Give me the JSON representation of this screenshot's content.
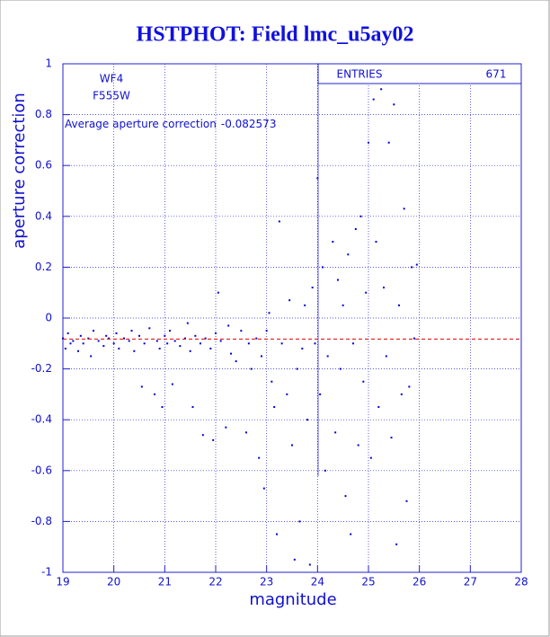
{
  "chart_data": {
    "type": "scatter",
    "title": "HSTPHOT: Field lmc_u5ay02",
    "x_label": "magnitude",
    "y_label": "aperture correction",
    "annotations": [
      "WF4",
      "F555W"
    ],
    "average_label": "Average aperture correction",
    "average": -0.082573,
    "average_color": "#e00000",
    "stats": {
      "label": "ENTRIES",
      "value": 671
    },
    "color": "#0000d0",
    "grid": true,
    "xlim": [
      19,
      28
    ],
    "xticks": [
      19,
      20,
      21,
      22,
      23,
      24,
      25,
      26,
      27,
      28
    ],
    "ylim": [
      -1,
      1
    ],
    "yticks": [
      -1,
      -0.8,
      -0.6,
      -0.4,
      -0.2,
      0,
      0.2,
      0.4,
      0.6,
      0.8,
      1
    ],
    "x": [
      19.0,
      19.05,
      19.1,
      19.15,
      19.2,
      19.3,
      19.35,
      19.4,
      19.5,
      19.55,
      19.6,
      19.7,
      19.8,
      19.85,
      19.9,
      20.0,
      20.05,
      20.1,
      20.2,
      20.3,
      20.35,
      20.4,
      20.5,
      20.55,
      20.6,
      20.7,
      20.8,
      20.85,
      20.9,
      20.95,
      21.0,
      21.05,
      21.1,
      21.15,
      21.2,
      21.3,
      21.4,
      21.45,
      21.5,
      21.55,
      21.6,
      21.7,
      21.75,
      21.8,
      21.9,
      21.95,
      22.0,
      22.05,
      22.1,
      22.2,
      22.25,
      22.3,
      22.4,
      22.5,
      22.6,
      22.65,
      22.7,
      22.8,
      22.85,
      22.9,
      22.95,
      23.0,
      23.05,
      23.1,
      23.15,
      23.2,
      23.25,
      23.3,
      23.4,
      23.45,
      23.5,
      23.55,
      23.6,
      23.65,
      23.7,
      23.75,
      23.8,
      23.85,
      23.9,
      23.95,
      24.0,
      24.05,
      24.1,
      24.15,
      24.2,
      24.3,
      24.35,
      24.4,
      24.45,
      24.5,
      24.55,
      24.6,
      24.65,
      24.7,
      24.75,
      24.8,
      24.85,
      24.9,
      24.95,
      25.0,
      25.05,
      25.1,
      25.15,
      25.2,
      25.25,
      25.3,
      25.35,
      25.4,
      25.45,
      25.5,
      25.55,
      25.6,
      25.65,
      25.7,
      25.75,
      25.8,
      25.85,
      25.9,
      25.95
    ],
    "y": [
      -0.08,
      -0.12,
      -0.06,
      -0.1,
      -0.09,
      -0.13,
      -0.07,
      -0.1,
      -0.08,
      -0.15,
      -0.05,
      -0.09,
      -0.11,
      -0.07,
      -0.08,
      -0.1,
      -0.06,
      -0.12,
      -0.08,
      -0.09,
      -0.05,
      -0.13,
      -0.07,
      -0.27,
      -0.1,
      -0.04,
      -0.3,
      -0.09,
      -0.12,
      -0.35,
      -0.07,
      -0.1,
      -0.05,
      -0.26,
      -0.09,
      -0.11,
      -0.08,
      -0.02,
      -0.13,
      -0.35,
      -0.07,
      -0.1,
      -0.46,
      -0.08,
      -0.12,
      -0.48,
      -0.06,
      0.1,
      -0.09,
      -0.43,
      -0.03,
      -0.14,
      -0.17,
      -0.05,
      -0.45,
      -0.1,
      -0.2,
      -0.08,
      -0.55,
      -0.15,
      -0.67,
      -0.05,
      0.02,
      -0.25,
      -0.35,
      -0.85,
      0.38,
      -0.1,
      -0.3,
      0.07,
      -0.5,
      -0.95,
      -0.2,
      -0.8,
      -0.12,
      0.05,
      -0.4,
      -0.97,
      0.12,
      -0.1,
      0.55,
      -0.3,
      0.2,
      -0.6,
      -0.15,
      0.3,
      -0.45,
      0.15,
      -0.2,
      0.05,
      -0.7,
      0.25,
      -0.85,
      -0.1,
      0.35,
      -0.5,
      0.4,
      -0.25,
      0.1,
      0.69,
      -0.55,
      0.86,
      0.3,
      -0.35,
      0.9,
      0.12,
      -0.15,
      0.69,
      -0.47,
      0.84,
      -0.89,
      0.05,
      -0.3,
      0.43,
      -0.72,
      -0.27,
      0.2,
      -0.08,
      0.21
    ]
  }
}
